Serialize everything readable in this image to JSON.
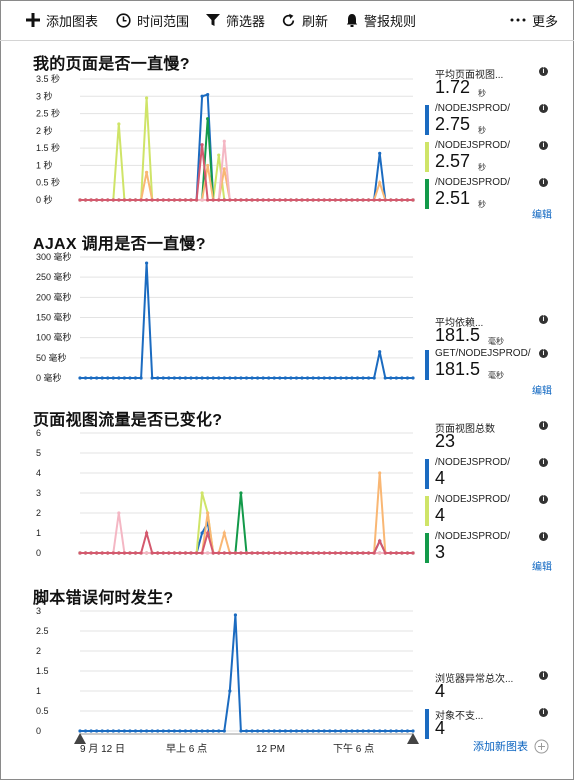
{
  "toolbar": {
    "add_chart": "添加图表",
    "time_range": "时间范围",
    "filter": "筛选器",
    "refresh": "刷新",
    "alert_rules": "警报规则",
    "more": "更多"
  },
  "colors": {
    "blue": "#1b6bc0",
    "lime": "#cfe468",
    "green": "#139a4a",
    "orange": "#f9b774",
    "pink": "#f4b7c4",
    "red": "#d4596e",
    "purple": "#8e7cc3",
    "link": "#0b64c0"
  },
  "charts": [
    {
      "title": "我的页面是否一直慢?",
      "y_ticks": [
        "3.5 秒",
        "3 秒",
        "2.5 秒",
        "2 秒",
        "1.5 秒",
        "1 秒",
        "0.5 秒",
        "0 秒"
      ],
      "ymax": 3.5,
      "metrics": [
        {
          "label": "平均页面视图...",
          "value": "1.72",
          "unit": "秒",
          "color": ""
        },
        {
          "label": "/NODEJSPROD/",
          "value": "2.75",
          "unit": "秒",
          "color": "#1b6bc0"
        },
        {
          "label": "/NODEJSPROD/",
          "value": "2.57",
          "unit": "秒",
          "color": "#cfe468"
        },
        {
          "label": "/NODEJSPROD/",
          "value": "2.51",
          "unit": "秒",
          "color": "#139a4a"
        }
      ],
      "edit": "编辑"
    },
    {
      "title": "AJAX 调用是否一直慢?",
      "y_ticks": [
        "300 毫秒",
        "250 毫秒",
        "200 毫秒",
        "150 毫秒",
        "100 毫秒",
        "50 毫秒",
        "0 毫秒"
      ],
      "ymax": 300,
      "metrics": [
        {
          "label": "平均依赖...",
          "value": "181.5",
          "unit": "毫秒",
          "color": ""
        },
        {
          "label": "GET/NODEJSPROD/",
          "value": "181.5",
          "unit": "毫秒",
          "color": "#1b6bc0"
        }
      ],
      "edit": "编辑"
    },
    {
      "title": "页面视图流量是否已变化?",
      "y_ticks": [
        "6",
        "5",
        "4",
        "3",
        "2",
        "1",
        "0"
      ],
      "ymax": 6,
      "metrics": [
        {
          "label": "页面视图总数",
          "value": "23",
          "unit": "",
          "color": ""
        },
        {
          "label": "/NODEJSPROD/",
          "value": "4",
          "unit": "",
          "color": "#1b6bc0"
        },
        {
          "label": "/NODEJSPROD/",
          "value": "4",
          "unit": "",
          "color": "#cfe468"
        },
        {
          "label": "/NODEJSPROD/",
          "value": "3",
          "unit": "",
          "color": "#139a4a"
        }
      ],
      "edit": "编辑"
    },
    {
      "title": "脚本错误何时发生?",
      "y_ticks": [
        "3",
        "2.5",
        "2",
        "1.5",
        "1",
        "0.5",
        "0"
      ],
      "ymax": 3,
      "metrics": [
        {
          "label": "浏览器异常总次...",
          "value": "4",
          "unit": "",
          "color": ""
        },
        {
          "label": "对象不支...",
          "value": "4",
          "unit": "",
          "color": "#1b6bc0"
        }
      ],
      "edit": ""
    }
  ],
  "x_axis_labels": [
    "9 月 12 日",
    "早上 6 点",
    "12 PM",
    "下午 6 点"
  ],
  "add_new_chart": "添加新图表",
  "chart_data": [
    {
      "type": "line",
      "title": "我的页面是否一直慢?",
      "ylim": [
        0,
        3.5
      ],
      "series": [
        {
          "name": "/NODEJSPROD/ (blue)",
          "color": "#1b6bc0",
          "spikes": [
            [
              0.36,
              3.0
            ],
            [
              0.38,
              3.05
            ],
            [
              0.9,
              1.35
            ]
          ]
        },
        {
          "name": "/NODEJSPROD/ (lime)",
          "color": "#cfe468",
          "spikes": [
            [
              0.12,
              2.2
            ],
            [
              0.2,
              2.95
            ],
            [
              0.42,
              1.3
            ]
          ]
        },
        {
          "name": "/NODEJSPROD/ (green)",
          "color": "#139a4a",
          "spikes": [
            [
              0.38,
              2.35
            ]
          ]
        },
        {
          "name": "orange",
          "color": "#f9b774",
          "spikes": [
            [
              0.2,
              0.8
            ],
            [
              0.39,
              1.0
            ],
            [
              0.44,
              0.9
            ],
            [
              0.9,
              0.5
            ]
          ]
        },
        {
          "name": "pink",
          "color": "#f4b7c4",
          "spikes": [
            [
              0.44,
              1.7
            ]
          ]
        },
        {
          "name": "red",
          "color": "#d4596e",
          "spikes": [
            [
              0.36,
              1.6
            ]
          ]
        }
      ]
    },
    {
      "type": "line",
      "title": "AJAX 调用是否一直慢?",
      "ylim": [
        0,
        300
      ],
      "series": [
        {
          "name": "GET/NODEJSPROD/",
          "color": "#1b6bc0",
          "spikes": [
            [
              0.2,
              285
            ],
            [
              0.9,
              65
            ]
          ]
        }
      ]
    },
    {
      "type": "line",
      "title": "页面视图流量是否已变化?",
      "ylim": [
        0,
        6
      ],
      "series": [
        {
          "name": "/NODEJSPROD/ (blue)",
          "color": "#1b6bc0",
          "spikes": [
            [
              0.36,
              1
            ],
            [
              0.38,
              1.5
            ],
            [
              0.9,
              0.6
            ]
          ]
        },
        {
          "name": "/NODEJSPROD/ (lime)",
          "color": "#cfe468",
          "spikes": [
            [
              0.36,
              3
            ],
            [
              0.38,
              2
            ]
          ]
        },
        {
          "name": "/NODEJSPROD/ (green)",
          "color": "#139a4a",
          "spikes": [
            [
              0.48,
              3
            ]
          ]
        },
        {
          "name": "orange",
          "color": "#f9b774",
          "spikes": [
            [
              0.38,
              2
            ],
            [
              0.44,
              1
            ],
            [
              0.9,
              4
            ]
          ]
        },
        {
          "name": "pink",
          "color": "#f4b7c4",
          "spikes": [
            [
              0.12,
              2
            ]
          ]
        },
        {
          "name": "red",
          "color": "#d4596e",
          "spikes": [
            [
              0.2,
              1
            ],
            [
              0.38,
              1
            ],
            [
              0.9,
              0.6
            ]
          ]
        }
      ]
    },
    {
      "type": "line",
      "title": "脚本错误何时发生?",
      "ylim": [
        0,
        3
      ],
      "series": [
        {
          "name": "对象不支...",
          "color": "#1b6bc0",
          "spikes": [
            [
              0.45,
              1
            ],
            [
              0.47,
              2.9
            ]
          ]
        }
      ]
    }
  ]
}
